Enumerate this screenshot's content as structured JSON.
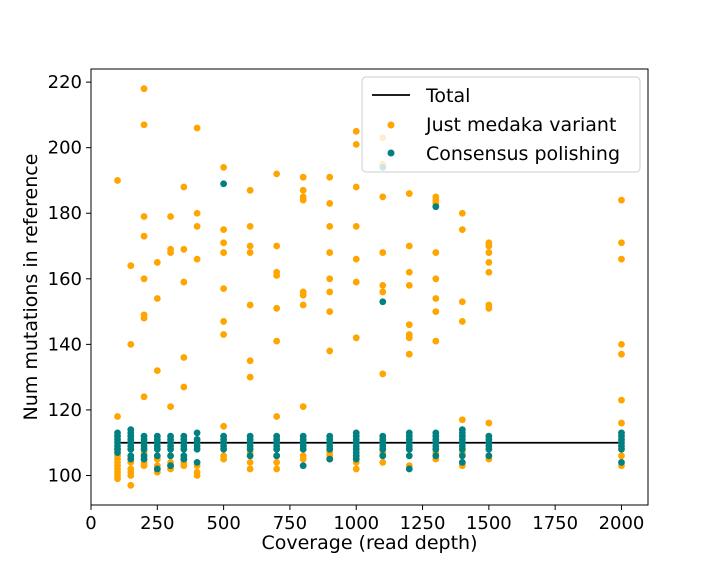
{
  "chart_data": {
    "type": "scatter",
    "title": "",
    "xlabel": "Coverage (read depth)",
    "ylabel": "Num mutations in reference",
    "xlim": [
      0,
      2100
    ],
    "ylim": [
      91,
      224
    ],
    "xticks": [
      0,
      250,
      500,
      750,
      1000,
      1250,
      1500,
      1750,
      2000
    ],
    "yticks": [
      100,
      120,
      140,
      160,
      180,
      200,
      220
    ],
    "grid": false,
    "legend_position": "top-right",
    "series": [
      {
        "name": "Total",
        "kind": "line",
        "color": "#000000",
        "x": [
          100,
          2000
        ],
        "y": [
          110,
          110
        ]
      },
      {
        "name": "Just medaka variant",
        "kind": "scatter",
        "color": "#FFA500",
        "points": [
          [
            100,
            190
          ],
          [
            100,
            118
          ],
          [
            100,
            108
          ],
          [
            100,
            106
          ],
          [
            100,
            105
          ],
          [
            100,
            104
          ],
          [
            100,
            103
          ],
          [
            100,
            102
          ],
          [
            100,
            101
          ],
          [
            100,
            100
          ],
          [
            100,
            99
          ],
          [
            150,
            164
          ],
          [
            150,
            140
          ],
          [
            150,
            108
          ],
          [
            150,
            104
          ],
          [
            150,
            102
          ],
          [
            150,
            101
          ],
          [
            150,
            100
          ],
          [
            150,
            97
          ],
          [
            200,
            218
          ],
          [
            200,
            207
          ],
          [
            200,
            179
          ],
          [
            200,
            173
          ],
          [
            200,
            160
          ],
          [
            200,
            149
          ],
          [
            200,
            148
          ],
          [
            200,
            124
          ],
          [
            200,
            107
          ],
          [
            200,
            104
          ],
          [
            200,
            103
          ],
          [
            250,
            165
          ],
          [
            250,
            154
          ],
          [
            250,
            132
          ],
          [
            250,
            105
          ],
          [
            250,
            103
          ],
          [
            250,
            102
          ],
          [
            250,
            101
          ],
          [
            300,
            179
          ],
          [
            300,
            169
          ],
          [
            300,
            168
          ],
          [
            300,
            121
          ],
          [
            300,
            104
          ],
          [
            300,
            103
          ],
          [
            300,
            102
          ],
          [
            350,
            188
          ],
          [
            350,
            169
          ],
          [
            350,
            159
          ],
          [
            350,
            136
          ],
          [
            350,
            127
          ],
          [
            350,
            105
          ],
          [
            350,
            104
          ],
          [
            350,
            103
          ],
          [
            400,
            206
          ],
          [
            400,
            180
          ],
          [
            400,
            176
          ],
          [
            400,
            166
          ],
          [
            400,
            103
          ],
          [
            400,
            101
          ],
          [
            400,
            100
          ],
          [
            500,
            194
          ],
          [
            500,
            175
          ],
          [
            500,
            171
          ],
          [
            500,
            168
          ],
          [
            500,
            157
          ],
          [
            500,
            147
          ],
          [
            500,
            143
          ],
          [
            500,
            115
          ],
          [
            500,
            106
          ],
          [
            500,
            105
          ],
          [
            600,
            187
          ],
          [
            600,
            176
          ],
          [
            600,
            170
          ],
          [
            600,
            168
          ],
          [
            600,
            152
          ],
          [
            600,
            135
          ],
          [
            600,
            130
          ],
          [
            600,
            107
          ],
          [
            600,
            104
          ],
          [
            600,
            102
          ],
          [
            700,
            192
          ],
          [
            700,
            170
          ],
          [
            700,
            162
          ],
          [
            700,
            161
          ],
          [
            700,
            151
          ],
          [
            700,
            141
          ],
          [
            700,
            118
          ],
          [
            700,
            106
          ],
          [
            700,
            104
          ],
          [
            700,
            102
          ],
          [
            800,
            191
          ],
          [
            800,
            187
          ],
          [
            800,
            185
          ],
          [
            800,
            184
          ],
          [
            800,
            156
          ],
          [
            800,
            155
          ],
          [
            800,
            152
          ],
          [
            800,
            121
          ],
          [
            800,
            106
          ],
          [
            800,
            105
          ],
          [
            900,
            191
          ],
          [
            900,
            183
          ],
          [
            900,
            176
          ],
          [
            900,
            168
          ],
          [
            900,
            160
          ],
          [
            900,
            156
          ],
          [
            900,
            150
          ],
          [
            900,
            138
          ],
          [
            900,
            107
          ],
          [
            900,
            106
          ],
          [
            900,
            105
          ],
          [
            1000,
            205
          ],
          [
            1000,
            201
          ],
          [
            1000,
            188
          ],
          [
            1000,
            176
          ],
          [
            1000,
            166
          ],
          [
            1000,
            159
          ],
          [
            1000,
            142
          ],
          [
            1000,
            113
          ],
          [
            1000,
            106
          ],
          [
            1000,
            104
          ],
          [
            1000,
            102
          ],
          [
            1100,
            203
          ],
          [
            1100,
            195
          ],
          [
            1100,
            185
          ],
          [
            1100,
            168
          ],
          [
            1100,
            158
          ],
          [
            1100,
            156
          ],
          [
            1100,
            131
          ],
          [
            1100,
            107
          ],
          [
            1100,
            104
          ],
          [
            1200,
            186
          ],
          [
            1200,
            170
          ],
          [
            1200,
            162
          ],
          [
            1200,
            158
          ],
          [
            1200,
            146
          ],
          [
            1200,
            143
          ],
          [
            1200,
            142
          ],
          [
            1200,
            137
          ],
          [
            1200,
            108
          ],
          [
            1200,
            103
          ],
          [
            1300,
            185
          ],
          [
            1300,
            184
          ],
          [
            1300,
            183
          ],
          [
            1300,
            168
          ],
          [
            1300,
            160
          ],
          [
            1300,
            154
          ],
          [
            1300,
            150
          ],
          [
            1300,
            141
          ],
          [
            1300,
            107
          ],
          [
            1300,
            105
          ],
          [
            1400,
            180
          ],
          [
            1400,
            175
          ],
          [
            1400,
            153
          ],
          [
            1400,
            147
          ],
          [
            1400,
            117
          ],
          [
            1400,
            107
          ],
          [
            1400,
            104
          ],
          [
            1400,
            103
          ],
          [
            1500,
            171
          ],
          [
            1500,
            170
          ],
          [
            1500,
            168
          ],
          [
            1500,
            165
          ],
          [
            1500,
            162
          ],
          [
            1500,
            152
          ],
          [
            1500,
            151
          ],
          [
            1500,
            116
          ],
          [
            1500,
            106
          ],
          [
            1500,
            105
          ],
          [
            2000,
            184
          ],
          [
            2000,
            171
          ],
          [
            2000,
            166
          ],
          [
            2000,
            140
          ],
          [
            2000,
            137
          ],
          [
            2000,
            123
          ],
          [
            2000,
            116
          ],
          [
            2000,
            113
          ],
          [
            2000,
            106
          ],
          [
            2000,
            103
          ]
        ]
      },
      {
        "name": "Consensus polishing",
        "kind": "scatter",
        "color": "#008080",
        "points": [
          [
            100,
            113
          ],
          [
            100,
            112
          ],
          [
            100,
            111
          ],
          [
            100,
            110
          ],
          [
            100,
            109
          ],
          [
            100,
            108
          ],
          [
            100,
            107
          ],
          [
            150,
            114
          ],
          [
            150,
            113
          ],
          [
            150,
            112
          ],
          [
            150,
            111
          ],
          [
            150,
            110
          ],
          [
            150,
            109
          ],
          [
            150,
            108
          ],
          [
            150,
            106
          ],
          [
            150,
            105
          ],
          [
            200,
            112
          ],
          [
            200,
            111
          ],
          [
            200,
            110
          ],
          [
            200,
            109
          ],
          [
            200,
            108
          ],
          [
            200,
            106
          ],
          [
            200,
            105
          ],
          [
            250,
            112
          ],
          [
            250,
            111
          ],
          [
            250,
            110
          ],
          [
            250,
            109
          ],
          [
            250,
            108
          ],
          [
            250,
            106
          ],
          [
            250,
            102
          ],
          [
            300,
            112
          ],
          [
            300,
            111
          ],
          [
            300,
            110
          ],
          [
            300,
            109
          ],
          [
            300,
            108
          ],
          [
            300,
            106
          ],
          [
            300,
            103
          ],
          [
            350,
            112
          ],
          [
            350,
            111
          ],
          [
            350,
            110
          ],
          [
            350,
            109
          ],
          [
            350,
            108
          ],
          [
            350,
            106
          ],
          [
            350,
            105
          ],
          [
            400,
            113
          ],
          [
            400,
            111
          ],
          [
            400,
            110
          ],
          [
            400,
            109
          ],
          [
            400,
            108
          ],
          [
            400,
            104
          ],
          [
            500,
            189
          ],
          [
            500,
            112
          ],
          [
            500,
            111
          ],
          [
            500,
            110
          ],
          [
            500,
            109
          ],
          [
            500,
            108
          ],
          [
            600,
            112
          ],
          [
            600,
            111
          ],
          [
            600,
            110
          ],
          [
            600,
            109
          ],
          [
            600,
            108
          ],
          [
            600,
            106
          ],
          [
            700,
            112
          ],
          [
            700,
            111
          ],
          [
            700,
            110
          ],
          [
            700,
            109
          ],
          [
            700,
            108
          ],
          [
            700,
            106
          ],
          [
            800,
            112
          ],
          [
            800,
            111
          ],
          [
            800,
            110
          ],
          [
            800,
            109
          ],
          [
            800,
            108
          ],
          [
            800,
            103
          ],
          [
            900,
            112
          ],
          [
            900,
            111
          ],
          [
            900,
            110
          ],
          [
            900,
            109
          ],
          [
            900,
            108
          ],
          [
            900,
            105
          ],
          [
            1000,
            113
          ],
          [
            1000,
            112
          ],
          [
            1000,
            111
          ],
          [
            1000,
            110
          ],
          [
            1000,
            109
          ],
          [
            1000,
            108
          ],
          [
            1000,
            107
          ],
          [
            1000,
            106
          ],
          [
            1000,
            105
          ],
          [
            1100,
            194
          ],
          [
            1100,
            153
          ],
          [
            1100,
            112
          ],
          [
            1100,
            111
          ],
          [
            1100,
            110
          ],
          [
            1100,
            109
          ],
          [
            1100,
            108
          ],
          [
            1100,
            106
          ],
          [
            1200,
            113
          ],
          [
            1200,
            112
          ],
          [
            1200,
            111
          ],
          [
            1200,
            110
          ],
          [
            1200,
            109
          ],
          [
            1200,
            108
          ],
          [
            1200,
            106
          ],
          [
            1200,
            102
          ],
          [
            1300,
            182
          ],
          [
            1300,
            113
          ],
          [
            1300,
            112
          ],
          [
            1300,
            111
          ],
          [
            1300,
            110
          ],
          [
            1300,
            109
          ],
          [
            1300,
            108
          ],
          [
            1300,
            106
          ],
          [
            1400,
            114
          ],
          [
            1400,
            113
          ],
          [
            1400,
            112
          ],
          [
            1400,
            111
          ],
          [
            1400,
            110
          ],
          [
            1400,
            109
          ],
          [
            1400,
            108
          ],
          [
            1400,
            106
          ],
          [
            1400,
            104
          ],
          [
            1500,
            112
          ],
          [
            1500,
            111
          ],
          [
            1500,
            110
          ],
          [
            1500,
            109
          ],
          [
            1500,
            108
          ],
          [
            1500,
            106
          ],
          [
            2000,
            113
          ],
          [
            2000,
            112
          ],
          [
            2000,
            111
          ],
          [
            2000,
            110
          ],
          [
            2000,
            109
          ],
          [
            2000,
            108
          ],
          [
            2000,
            104
          ]
        ]
      }
    ]
  }
}
